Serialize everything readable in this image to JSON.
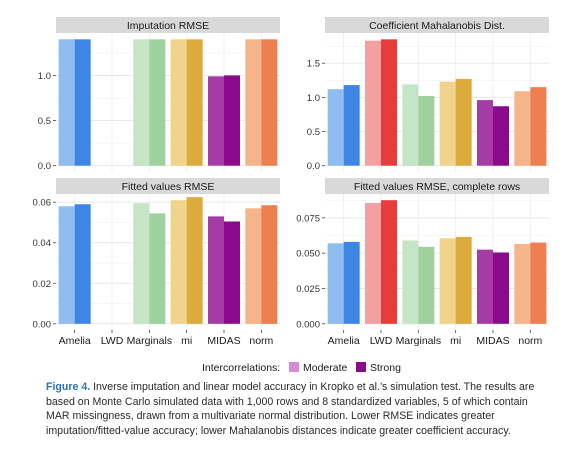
{
  "chart_data": {
    "type": "bar",
    "categories": [
      "Amelia",
      "LWD",
      "Marginals",
      "mi",
      "MIDAS",
      "norm"
    ],
    "legend": {
      "title": "Intercorrelations:",
      "entries": [
        "Moderate",
        "Strong"
      ],
      "colors": [
        "#d48cd4",
        "#8b0a8b"
      ],
      "position": "bottom"
    },
    "method_colors": {
      "Amelia": {
        "moderate": "#8fbdf0",
        "strong": "#3d86e6"
      },
      "LWD": {
        "moderate": "#f4a0a0",
        "strong": "#e63c3c"
      },
      "Marginals": {
        "moderate": "#c5e6c5",
        "strong": "#9ed19e"
      },
      "mi": {
        "moderate": "#f0d48c",
        "strong": "#dcab3b"
      },
      "MIDAS": {
        "moderate": "#a53ca5",
        "strong": "#8b0a8b"
      },
      "norm": {
        "moderate": "#f5b48a",
        "strong": "#ee7f4e"
      }
    },
    "panels": [
      {
        "title": "Imputation RMSE",
        "ylim": [
          0,
          1.4
        ],
        "yticks": [
          0.0,
          0.5,
          1.0
        ],
        "ytick_labels": [
          "0.0",
          "0.5",
          "1.0"
        ],
        "series": [
          {
            "name": "Moderate",
            "values": [
              1.4,
              null,
              1.4,
              1.4,
              0.99,
              1.4
            ]
          },
          {
            "name": "Strong",
            "values": [
              1.4,
              null,
              1.4,
              1.4,
              1.0,
              1.4
            ]
          }
        ]
      },
      {
        "title": "Coefficient Mahalanobis Dist.",
        "ylim": [
          0,
          1.85
        ],
        "yticks": [
          0.0,
          0.5,
          1.0,
          1.5
        ],
        "ytick_labels": [
          "0.0",
          "0.5",
          "1.0",
          "1.5"
        ],
        "series": [
          {
            "name": "Moderate",
            "values": [
              1.12,
              1.83,
              1.19,
              1.23,
              0.96,
              1.09
            ]
          },
          {
            "name": "Strong",
            "values": [
              1.18,
              1.85,
              1.02,
              1.27,
              0.87,
              1.15
            ]
          }
        ]
      },
      {
        "title": "Fitted values RMSE",
        "ylim": [
          0,
          0.061
        ],
        "yticks": [
          0.0,
          0.02,
          0.04,
          0.06
        ],
        "ytick_labels": [
          "0.00",
          "0.02",
          "0.04",
          "0.06"
        ],
        "series": [
          {
            "name": "Moderate",
            "values": [
              0.058,
              null,
              0.0595,
              0.061,
              0.053,
              0.057
            ]
          },
          {
            "name": "Strong",
            "values": [
              0.059,
              null,
              0.0545,
              0.0625,
              0.0505,
              0.0585
            ]
          }
        ]
      },
      {
        "title": "Fitted values RMSE, complete rows",
        "ylim": [
          0,
          0.0875
        ],
        "yticks": [
          0.0,
          0.025,
          0.05,
          0.075
        ],
        "ytick_labels": [
          "0.000",
          "0.025",
          "0.050",
          "0.075"
        ],
        "series": [
          {
            "name": "Moderate",
            "values": [
              0.057,
              0.0855,
              0.059,
              0.0605,
              0.0525,
              0.0565
            ]
          },
          {
            "name": "Strong",
            "values": [
              0.058,
              0.0875,
              0.0545,
              0.0615,
              0.0505,
              0.0575
            ]
          }
        ]
      }
    ],
    "grid": true,
    "xlabel": "",
    "ylabel": ""
  },
  "caption": {
    "label": "Figure 4.",
    "text": " Inverse imputation and linear model accuracy in Kropko et al.’s simulation test. The results are based on Monte Carlo simulated data with 1,000 rows and 8 standardized variables, 5 of which contain MAR missingness, drawn from a multivariate normal distribution. Lower RMSE indicates greater imputation/fitted-value accuracy; lower Mahalanobis distances indicate greater coefficient accuracy."
  }
}
